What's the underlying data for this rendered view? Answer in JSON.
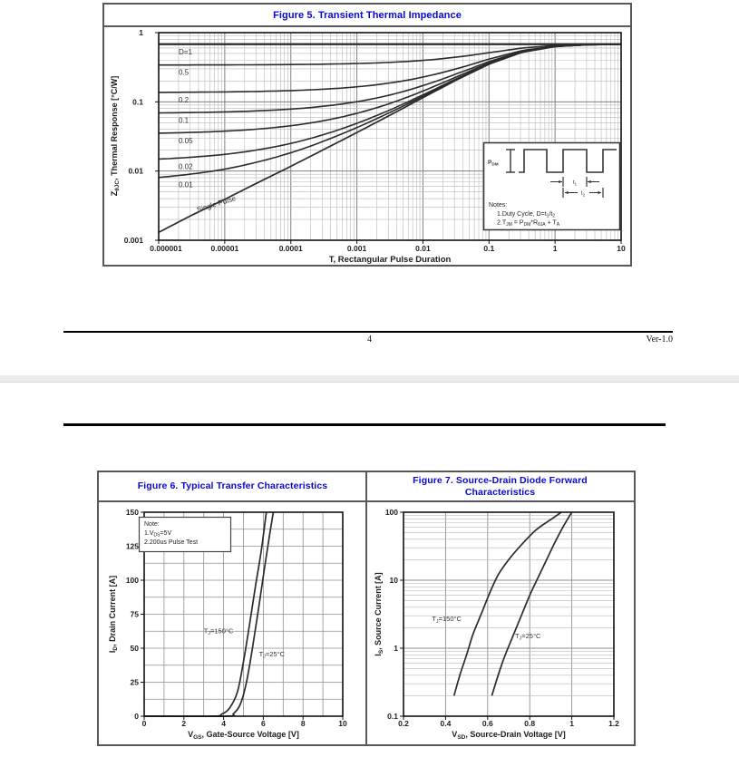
{
  "document": {
    "footer": {
      "page_number": "4",
      "version": "Ver-1.0"
    }
  },
  "colors": {
    "title_blue": "#0808cf",
    "curve": "#2b2b2b",
    "grid_minor": "#b8b8b8",
    "grid_major": "#808080",
    "frame": "#111111",
    "panel_border": "#58585b",
    "page_gap": "#ececec",
    "text": "#1c1c1c"
  },
  "chart_data": [
    {
      "id": "fig5",
      "type": "line",
      "title": "Figure 5. Transient Thermal Impedance",
      "xlabel": "T, Rectangular Pulse Duration",
      "ylabel_parts": [
        [
          "Z",
          0
        ],
        [
          "θJC",
          1
        ],
        [
          ", Thermal Response [°C/W]",
          0
        ]
      ],
      "x_scale": "log",
      "y_scale": "log",
      "xlim": [
        1e-06,
        10
      ],
      "ylim": [
        0.001,
        1
      ],
      "x_tick_labels": [
        "0.000001",
        "0.00001",
        "0.0001",
        "0.001",
        "0.01",
        "0.1",
        "1",
        "10"
      ],
      "y_tick_labels": [
        "1",
        "0.1",
        "0.01",
        "0.001"
      ],
      "rtheta_jc": 0.68,
      "duty_cycle_curves": [
        {
          "d": 1,
          "label": "D=1"
        },
        {
          "d": 0.5,
          "label": "0.5"
        },
        {
          "d": 0.2,
          "label": "0.2"
        },
        {
          "d": 0.1,
          "label": "0.1"
        },
        {
          "d": 0.05,
          "label": "0.05"
        },
        {
          "d": 0.02,
          "label": "0.02"
        },
        {
          "d": 0.01,
          "label": "0.01"
        }
      ],
      "single_pulse": {
        "label": "Single Pulse",
        "points_log10t_z": [
          [
            -6,
            0.0013
          ],
          [
            -5.5,
            0.0023
          ],
          [
            -5,
            0.0039
          ],
          [
            -4.5,
            0.0068
          ],
          [
            -4,
            0.0117
          ],
          [
            -3.5,
            0.0205
          ],
          [
            -3,
            0.036
          ],
          [
            -2.5,
            0.064
          ],
          [
            -2,
            0.115
          ],
          [
            -1.5,
            0.205
          ],
          [
            -1,
            0.35
          ],
          [
            -0.5,
            0.52
          ],
          [
            0,
            0.63
          ],
          [
            0.5,
            0.668
          ],
          [
            1,
            0.678
          ]
        ]
      },
      "inset": {
        "pdm_parts": [
          [
            "P",
            0
          ],
          [
            "DM",
            1
          ]
        ],
        "t1_parts": [
          [
            "t",
            0
          ],
          [
            "1",
            1
          ]
        ],
        "t2_parts": [
          [
            "t",
            0
          ],
          [
            "2",
            1
          ]
        ],
        "notes_title": "Notes:",
        "note1_parts": [
          [
            "1.Duty Cycle, D=t",
            0
          ],
          [
            "1",
            1
          ],
          [
            "/t",
            0
          ],
          [
            "2",
            1
          ]
        ],
        "note2_parts": [
          [
            "2.T",
            0
          ],
          [
            "JM",
            1
          ],
          [
            " = P",
            0
          ],
          [
            "DM",
            1
          ],
          [
            "*R",
            0
          ],
          [
            "θJA",
            1
          ],
          [
            " + T",
            0
          ],
          [
            "A",
            1
          ]
        ]
      }
    },
    {
      "id": "fig6",
      "type": "line",
      "title": "Figure 6. Typical Transfer Characteristics",
      "xlabel_parts": [
        [
          "V",
          0
        ],
        [
          "GS",
          1
        ],
        [
          ", Gate-Source Voltage [V]",
          0
        ]
      ],
      "ylabel_parts": [
        [
          "I",
          0
        ],
        [
          "D",
          1
        ],
        [
          ", Drain Current [A]",
          0
        ]
      ],
      "xlim": [
        0,
        10
      ],
      "ylim": [
        0,
        150
      ],
      "x_ticks": [
        0,
        2,
        4,
        6,
        8,
        10
      ],
      "y_ticks": [
        0,
        25,
        50,
        75,
        100,
        125,
        150
      ],
      "x_grid_step": 1,
      "y_grid_step": 12.5,
      "note": {
        "title": "Note:",
        "line1_parts": [
          [
            "1.V",
            0
          ],
          [
            "DS",
            1
          ],
          [
            "=5V",
            0
          ]
        ],
        "line2": "2.200us Pulse Test"
      },
      "series": [
        {
          "label_parts": [
            [
              "T",
              0
            ],
            [
              "J",
              1
            ],
            [
              "=150°C",
              0
            ]
          ],
          "label_at": [
            3.0,
            61
          ],
          "points": [
            [
              0,
              0
            ],
            [
              3.4,
              0
            ],
            [
              3.9,
              1.5
            ],
            [
              4.3,
              6
            ],
            [
              4.7,
              18
            ],
            [
              5.0,
              40
            ],
            [
              5.3,
              67
            ],
            [
              5.6,
              95
            ],
            [
              5.9,
              122
            ],
            [
              6.15,
              150
            ]
          ]
        },
        {
          "label_parts": [
            [
              "T",
              0
            ],
            [
              "J",
              1
            ],
            [
              "=25°C",
              0
            ]
          ],
          "label_at": [
            5.78,
            44
          ],
          "points": [
            [
              0,
              0
            ],
            [
              4.1,
              0
            ],
            [
              4.5,
              2
            ],
            [
              4.85,
              9
            ],
            [
              5.15,
              25
            ],
            [
              5.45,
              50
            ],
            [
              5.75,
              78
            ],
            [
              6.05,
              108
            ],
            [
              6.3,
              132
            ],
            [
              6.5,
              150
            ]
          ]
        }
      ]
    },
    {
      "id": "fig7",
      "type": "line",
      "title": "Figure 7. Source-Drain Diode Forward Characteristics",
      "xlabel_parts": [
        [
          "V",
          0
        ],
        [
          "SD",
          1
        ],
        [
          ", Source-Drain Voltage [V]",
          0
        ]
      ],
      "ylabel_parts": [
        [
          "I",
          0
        ],
        [
          "S",
          1
        ],
        [
          ", Source Current [A]",
          0
        ]
      ],
      "xlim": [
        0.2,
        1.2
      ],
      "ylim": [
        0.1,
        100
      ],
      "y_scale": "log",
      "x_tick_labels": [
        "0.2",
        "0.4",
        "0.6",
        "0.8",
        "1",
        "1.2"
      ],
      "y_tick_labels": [
        "100",
        "10",
        "1",
        "0.1"
      ],
      "series": [
        {
          "label_parts": [
            [
              "T",
              0
            ],
            [
              "J",
              1
            ],
            [
              "=150°C",
              0
            ]
          ],
          "label_at": [
            0.335,
            2.5
          ],
          "points": [
            [
              0.44,
              0.2
            ],
            [
              0.47,
              0.42
            ],
            [
              0.5,
              0.8
            ],
            [
              0.53,
              1.6
            ],
            [
              0.57,
              3.2
            ],
            [
              0.61,
              6.5
            ],
            [
              0.65,
              12
            ],
            [
              0.7,
              20
            ],
            [
              0.76,
              33
            ],
            [
              0.83,
              55
            ],
            [
              0.9,
              78
            ],
            [
              0.95,
              100
            ]
          ]
        },
        {
          "label_parts": [
            [
              "T",
              0
            ],
            [
              "J",
              1
            ],
            [
              "=25°C",
              0
            ]
          ],
          "label_at": [
            0.73,
            1.4
          ],
          "points": [
            [
              0.62,
              0.2
            ],
            [
              0.65,
              0.4
            ],
            [
              0.68,
              0.75
            ],
            [
              0.72,
              1.5
            ],
            [
              0.76,
              3.0
            ],
            [
              0.8,
              6.0
            ],
            [
              0.84,
              11
            ],
            [
              0.88,
              20
            ],
            [
              0.92,
              36
            ],
            [
              0.96,
              62
            ],
            [
              1.0,
              100
            ]
          ]
        }
      ]
    }
  ]
}
